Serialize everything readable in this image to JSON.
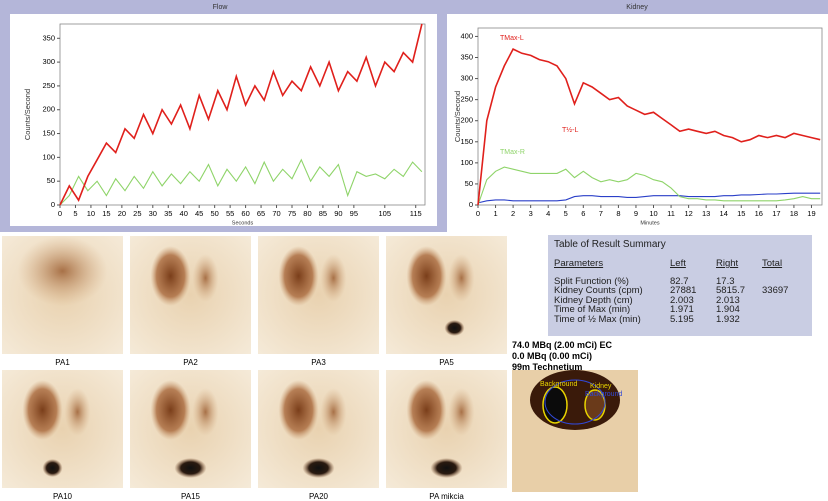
{
  "chart_data": [
    {
      "type": "line",
      "title": "Flow",
      "x_label": "Seconds",
      "y_label": "Counts/Second",
      "x": [
        0,
        3,
        6,
        9,
        12,
        15,
        18,
        21,
        24,
        27,
        30,
        33,
        36,
        39,
        42,
        45,
        48,
        51,
        54,
        57,
        60,
        63,
        66,
        69,
        72,
        75,
        78,
        81,
        84,
        87,
        90,
        93,
        96,
        99,
        102,
        105,
        108,
        111,
        114,
        117
      ],
      "series": [
        {
          "color": "#e0201c",
          "values": [
            0,
            40,
            10,
            60,
            95,
            130,
            110,
            160,
            140,
            190,
            150,
            200,
            170,
            210,
            160,
            230,
            180,
            240,
            200,
            270,
            210,
            250,
            220,
            280,
            230,
            260,
            240,
            290,
            250,
            300,
            240,
            280,
            260,
            310,
            250,
            300,
            280,
            320,
            300,
            380
          ]
        },
        {
          "color": "#8fd46a",
          "values": [
            0,
            20,
            60,
            30,
            50,
            20,
            55,
            30,
            60,
            35,
            70,
            40,
            65,
            45,
            70,
            50,
            85,
            40,
            75,
            50,
            80,
            45,
            90,
            50,
            75,
            55,
            95,
            50,
            80,
            60,
            85,
            20,
            70,
            60,
            65,
            55,
            75,
            60,
            90,
            70
          ]
        }
      ],
      "xlim": [
        0,
        118
      ],
      "ylim": [
        0,
        380
      ],
      "xticks": [
        0,
        5,
        10,
        15,
        20,
        25,
        30,
        35,
        40,
        45,
        50,
        55,
        60,
        65,
        70,
        75,
        80,
        85,
        90,
        95,
        105,
        115
      ],
      "yticks": [
        0,
        50,
        100,
        150,
        200,
        250,
        300,
        350
      ]
    },
    {
      "type": "line",
      "title": "Kidney",
      "x_label": "Minutes",
      "y_label": "Counts/Second",
      "x": [
        0,
        0.5,
        1,
        1.5,
        2,
        2.5,
        3,
        3.5,
        4,
        4.5,
        5,
        5.5,
        6,
        6.5,
        7,
        7.5,
        8,
        8.5,
        9,
        9.5,
        10,
        10.5,
        11,
        11.5,
        12,
        12.5,
        13,
        13.5,
        14,
        14.5,
        15,
        15.5,
        16,
        16.5,
        17,
        17.5,
        18,
        18.5,
        19,
        19.5
      ],
      "series": [
        {
          "color": "#e0201c",
          "values": [
            0,
            200,
            280,
            330,
            370,
            360,
            355,
            345,
            340,
            330,
            300,
            240,
            290,
            280,
            265,
            250,
            255,
            235,
            225,
            215,
            220,
            205,
            190,
            175,
            180,
            175,
            170,
            175,
            165,
            160,
            150,
            155,
            165,
            160,
            165,
            160,
            170,
            165,
            160,
            155
          ]
        },
        {
          "color": "#8fd46a",
          "values": [
            0,
            60,
            80,
            90,
            85,
            80,
            75,
            75,
            75,
            75,
            85,
            65,
            80,
            65,
            55,
            60,
            55,
            60,
            75,
            70,
            60,
            55,
            40,
            20,
            15,
            15,
            12,
            12,
            10,
            10,
            10,
            10,
            10,
            10,
            10,
            12,
            15,
            20,
            15,
            15
          ]
        },
        {
          "color": "#2a3fc8",
          "values": [
            5,
            10,
            12,
            12,
            10,
            10,
            10,
            10,
            10,
            10,
            12,
            20,
            22,
            22,
            20,
            20,
            20,
            18,
            18,
            20,
            22,
            22,
            22,
            22,
            20,
            20,
            20,
            20,
            22,
            22,
            24,
            24,
            25,
            26,
            26,
            27,
            28,
            28,
            28,
            28
          ]
        }
      ],
      "annotations": [
        "TMax-L",
        "T½-L",
        "TMax-R"
      ],
      "xlim": [
        0,
        19.6
      ],
      "ylim": [
        0,
        420
      ],
      "xticks": [
        0,
        1,
        2,
        3,
        4,
        5,
        6,
        7,
        8,
        9,
        10,
        11,
        12,
        13,
        14,
        15,
        16,
        17,
        18,
        19
      ],
      "yticks": [
        0,
        50,
        100,
        150,
        200,
        250,
        300,
        350,
        400
      ]
    }
  ],
  "images": {
    "row1": [
      "PA1",
      "PA2",
      "PA3",
      "PA5"
    ],
    "row2": [
      "PA10",
      "PA15",
      "PA20",
      "PA mikcia"
    ],
    "roi": [
      "Background",
      "Kidney",
      "Background"
    ]
  },
  "table": {
    "title": "Table of Result Summary",
    "header": [
      "Parameters",
      "Left",
      "Right",
      "Total"
    ],
    "rows": [
      [
        "Split Function (%)",
        "82.7",
        "17.3"
      ],
      [
        "Kidney Counts (cpm)",
        "27881",
        "5815.7",
        "33697"
      ],
      [
        "Kidney Depth (cm)",
        "2.003",
        "2.013"
      ],
      [
        "Time of Max (min)",
        "1.971",
        "1.904"
      ],
      [
        "Time of ½ Max (min)",
        "5.195",
        "1.932"
      ]
    ]
  },
  "info": [
    "74.0 MBq (2.00 mCi) EC",
    "0.0 MBq (0.00 mCi)",
    "99m Technetium"
  ]
}
